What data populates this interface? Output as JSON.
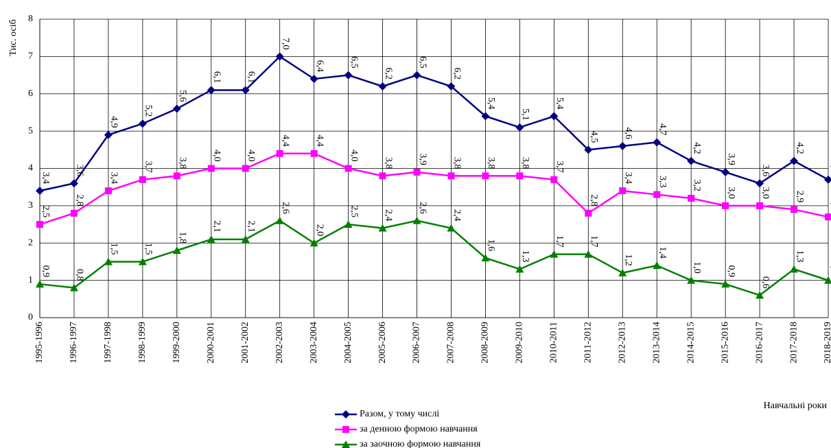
{
  "chart_data": {
    "type": "line",
    "y_label": "Тис. осіб",
    "x_label": "Навчальні роки",
    "categories": [
      "1995-1996",
      "1996-1997",
      "1997-1998",
      "1998-1999",
      "1999-2000",
      "2000-2001",
      "2001-2002",
      "2002-2003",
      "2003-2004",
      "2004-2005",
      "2005-2006",
      "2006-2007",
      "2007-2008",
      "2008-2009",
      "2009-2010",
      "2010-2011",
      "2011-2012",
      "2012-2013",
      "2013-2014",
      "2014-2015",
      "2015-2016",
      "2016-2017",
      "2017-2018",
      "2018-2019"
    ],
    "series": [
      {
        "name": "Разом, у тому числі",
        "color": "#000080",
        "marker": "diamond",
        "values": [
          3.4,
          3.6,
          4.9,
          5.2,
          5.6,
          6.1,
          6.1,
          7.0,
          6.4,
          6.5,
          6.2,
          6.5,
          6.2,
          5.4,
          5.1,
          5.4,
          4.5,
          4.6,
          4.7,
          4.2,
          3.9,
          3.6,
          4.2,
          3.7
        ],
        "value_labels": [
          "3,4",
          "3,6",
          "4,9",
          "5,2",
          "5,6",
          "6,1",
          "6,1",
          "7,0",
          "6,4",
          "6,5",
          "6,2",
          "6,5",
          "6,2",
          "5,4",
          "5,1",
          "5,4",
          "4,5",
          "4,6",
          "4,7",
          "4,2",
          "3,9",
          "3,6",
          "4,2",
          "3,7"
        ]
      },
      {
        "name": "за денною формою навчання",
        "color": "#ff00ff",
        "marker": "square",
        "values": [
          2.5,
          2.8,
          3.4,
          3.7,
          3.8,
          4.0,
          4.0,
          4.4,
          4.4,
          4.0,
          3.8,
          3.9,
          3.8,
          3.8,
          3.8,
          3.7,
          2.8,
          3.4,
          3.3,
          3.2,
          3.0,
          3.0,
          2.9,
          2.7
        ],
        "value_labels": [
          "2,5",
          "2,8",
          "3,4",
          "3,7",
          "3,8",
          "4,0",
          "4,0",
          "4,4",
          "4,4",
          "4,0",
          "3,8",
          "3,9",
          "3,8",
          "3,8",
          "3,8",
          "3,7",
          "2,8",
          "3,4",
          "3,3",
          "3,2",
          "3,0",
          "3,0",
          "2,9",
          "2,7"
        ]
      },
      {
        "name": "за заочною формою навчання",
        "color": "#008000",
        "marker": "triangle",
        "values": [
          0.9,
          0.8,
          1.5,
          1.5,
          1.8,
          2.1,
          2.1,
          2.6,
          2.0,
          2.5,
          2.4,
          2.6,
          2.4,
          1.6,
          1.3,
          1.7,
          1.7,
          1.2,
          1.4,
          1.0,
          0.9,
          0.6,
          1.3,
          1.0
        ],
        "value_labels": [
          "0,9",
          "0,8",
          "1,5",
          "1,5",
          "1,8",
          "2,1",
          "2,1",
          "2,6",
          "2,0",
          "2,5",
          "2,4",
          "2,6",
          "2,4",
          "1,6",
          "1,3",
          "1,7",
          "1,7",
          "1,2",
          "1,4",
          "1,0",
          "0,9",
          "0,6",
          "1,3",
          "1,0"
        ]
      }
    ],
    "ylim": [
      0,
      8
    ],
    "yticks": [
      0,
      1,
      2,
      3,
      4,
      5,
      6,
      7,
      8
    ],
    "grid": true
  }
}
